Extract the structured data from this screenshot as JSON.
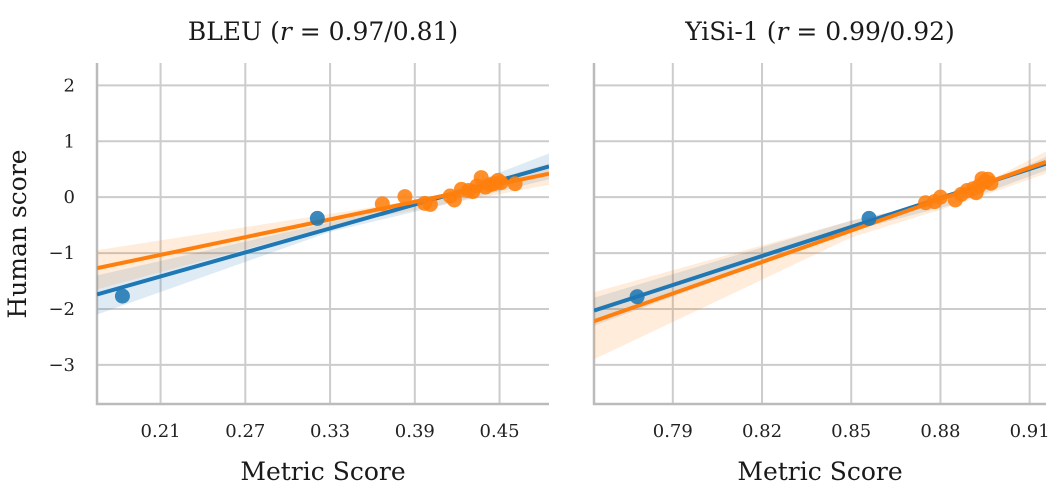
{
  "figure": {
    "ylabel": "Human score"
  },
  "chart_data": [
    {
      "type": "scatter",
      "title": {
        "metric": "BLEU",
        "r_var": "r",
        "r_value": "= 0.97/0.81"
      },
      "xlabel": "Metric Score",
      "ylabel": "Human score",
      "xlim": [
        0.165,
        0.485
      ],
      "ylim": [
        -3.7,
        2.4
      ],
      "xticks": [
        0.21,
        0.27,
        0.33,
        0.39,
        0.45
      ],
      "xtick_labels": [
        "0.21",
        "0.27",
        "0.33",
        "0.39",
        "0.45"
      ],
      "yticks": [
        2,
        1,
        0,
        -1,
        -2,
        -3
      ],
      "ytick_labels": [
        "2",
        "1",
        "0",
        "−1",
        "−2",
        "−3"
      ],
      "grid": true,
      "series": [
        {
          "color": "#1f77b4",
          "points": [
            [
              0.183,
              -1.77
            ],
            [
              0.321,
              -0.38
            ]
          ],
          "fit": {
            "x": [
              0.165,
              0.485
            ],
            "y": [
              -1.74,
              0.55
            ]
          },
          "band": [
            [
              0.165,
              -1.4,
              -2.1
            ],
            [
              0.33,
              -0.45,
              -0.62
            ],
            [
              0.4,
              -0.04,
              -0.2
            ],
            [
              0.485,
              0.78,
              0.32
            ]
          ]
        },
        {
          "color": "#ff7f0e",
          "points": [
            [
              0.367,
              -0.12
            ],
            [
              0.383,
              0.01
            ],
            [
              0.397,
              -0.11
            ],
            [
              0.401,
              -0.13
            ],
            [
              0.415,
              0.02
            ],
            [
              0.418,
              -0.05
            ],
            [
              0.423,
              0.14
            ],
            [
              0.428,
              0.12
            ],
            [
              0.431,
              0.1
            ],
            [
              0.434,
              0.2
            ],
            [
              0.437,
              0.35
            ],
            [
              0.44,
              0.18
            ],
            [
              0.443,
              0.22
            ],
            [
              0.446,
              0.24
            ],
            [
              0.449,
              0.3
            ],
            [
              0.451,
              0.26
            ],
            [
              0.461,
              0.24
            ]
          ],
          "fit": {
            "x": [
              0.165,
              0.485
            ],
            "y": [
              -1.27,
              0.42
            ]
          },
          "band": [
            [
              0.165,
              -0.95,
              -1.65
            ],
            [
              0.33,
              -0.3,
              -0.52
            ],
            [
              0.4,
              -0.02,
              -0.18
            ],
            [
              0.485,
              0.6,
              0.22
            ]
          ]
        }
      ]
    },
    {
      "type": "scatter",
      "title": {
        "metric": "YiSi-1",
        "r_var": "r",
        "r_value": "= 0.99/0.92"
      },
      "xlabel": "Metric Score",
      "ylabel": "",
      "xlim": [
        0.7635,
        0.9155
      ],
      "ylim": [
        -3.7,
        2.4
      ],
      "xticks": [
        0.79,
        0.82,
        0.85,
        0.88,
        0.91
      ],
      "xtick_labels": [
        "0.79",
        "0.82",
        "0.85",
        "0.88",
        "0.91"
      ],
      "yticks": [
        2,
        1,
        0,
        -1,
        -2,
        -3
      ],
      "ytick_labels": [
        "",
        "",
        "",
        "",
        "",
        ""
      ],
      "grid": true,
      "series": [
        {
          "color": "#1f77b4",
          "points": [
            [
              0.778,
              -1.78
            ],
            [
              0.856,
              -0.38
            ]
          ],
          "fit": {
            "x": [
              0.7635,
              0.9155
            ],
            "y": [
              -2.03,
              0.6
            ]
          },
          "band": [
            [
              0.7635,
              -1.8,
              -2.3
            ],
            [
              0.85,
              -0.42,
              -0.6
            ],
            [
              0.885,
              -0.02,
              -0.12
            ],
            [
              0.9155,
              0.72,
              0.48
            ]
          ]
        },
        {
          "color": "#ff7f0e",
          "points": [
            [
              0.875,
              -0.1
            ],
            [
              0.878,
              -0.08
            ],
            [
              0.88,
              0.0
            ],
            [
              0.885,
              -0.05
            ],
            [
              0.887,
              0.05
            ],
            [
              0.889,
              0.12
            ],
            [
              0.891,
              0.15
            ],
            [
              0.893,
              0.2
            ],
            [
              0.894,
              0.33
            ],
            [
              0.895,
              0.28
            ],
            [
              0.896,
              0.32
            ],
            [
              0.897,
              0.25
            ],
            [
              0.892,
              0.08
            ]
          ],
          "fit": {
            "x": [
              0.7635,
              0.9155
            ],
            "y": [
              -2.22,
              0.63
            ]
          },
          "band": [
            [
              0.7635,
              -1.7,
              -2.9
            ],
            [
              0.85,
              -0.42,
              -0.72
            ],
            [
              0.885,
              -0.02,
              -0.14
            ],
            [
              0.9155,
              0.82,
              0.42
            ]
          ]
        }
      ]
    }
  ]
}
